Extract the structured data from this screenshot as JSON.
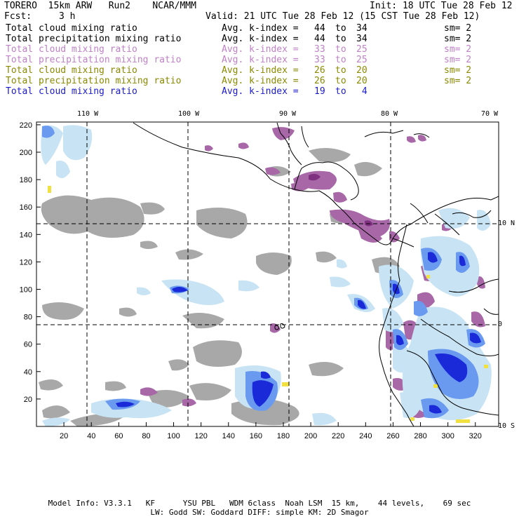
{
  "header": {
    "model": "TORERO  15km ARW   Run2    NCAR/MMM",
    "init": "Init: 18 UTC Tue 28 Feb 12",
    "fcst_label": "Fcst:",
    "fcst_value": "3 h",
    "valid": "Valid: 21 UTC Tue 28 Feb 12 (15 CST Tue 28 Feb 12)"
  },
  "legend": [
    {
      "field": "Total cloud mixing ratio",
      "avg": "Avg. k-index =",
      "from": "44",
      "to_word": "to",
      "to": "34",
      "sm": "sm= 2",
      "color": "#000000"
    },
    {
      "field": "Total precipitation mixing ratio",
      "avg": "Avg. k-index =",
      "from": "44",
      "to_word": "to",
      "to": "34",
      "sm": "sm= 2",
      "color": "#000000"
    },
    {
      "field": "Total cloud mixing ratio",
      "avg": "Avg. k-index =",
      "from": "33",
      "to_word": "to",
      "to": "25",
      "sm": "sm= 2",
      "color": "#c080c8"
    },
    {
      "field": "Total precipitation mixing ratio",
      "avg": "Avg. k-index =",
      "from": "33",
      "to_word": "to",
      "to": "25",
      "sm": "sm= 2",
      "color": "#c080c8"
    },
    {
      "field": "Total cloud mixing ratio",
      "avg": "Avg. k-index =",
      "from": "26",
      "to_word": "to",
      "to": "20",
      "sm": "sm= 2",
      "color": "#8a8a00"
    },
    {
      "field": "Total precipitation mixing ratio",
      "avg": "Avg. k-index =",
      "from": "26",
      "to_word": "to",
      "to": "20",
      "sm": "sm= 2",
      "color": "#8a8a00"
    },
    {
      "field": "Total cloud mixing ratio",
      "avg": "Avg. k-index =",
      "from": "19",
      "to_word": "to",
      "to": " 4",
      "sm": "",
      "color": "#1a1ad0"
    }
  ],
  "map": {
    "lon_labels": [
      "110 W",
      "100 W",
      "90 W",
      "80 W",
      "70 W"
    ],
    "lat_labels": [
      "10 N",
      "0",
      "10 S"
    ],
    "x_ticks": [
      "20",
      "40",
      "60",
      "80",
      "100",
      "120",
      "140",
      "160",
      "180",
      "200",
      "220",
      "240",
      "260",
      "280",
      "300",
      "320"
    ],
    "y_ticks": [
      "20",
      "40",
      "60",
      "80",
      "100",
      "120",
      "140",
      "160",
      "180",
      "200",
      "220"
    ],
    "colors": {
      "gray": "#a8a8a8",
      "purple": "#a868a8",
      "dark_purple": "#803080",
      "light_blue": "#c8e4f4",
      "mid_blue": "#6a9af0",
      "blue": "#1a2ad8",
      "yellow": "#f0e040"
    }
  },
  "footer": {
    "line1": "Model Info: V3.3.1   KF      YSU PBL   WDM 6class  Noah LSM  15 km,    44 levels,    69 sec",
    "line2": "LW: Godd SW: Goddard DIFF: simple KM: 2D Smagor"
  }
}
